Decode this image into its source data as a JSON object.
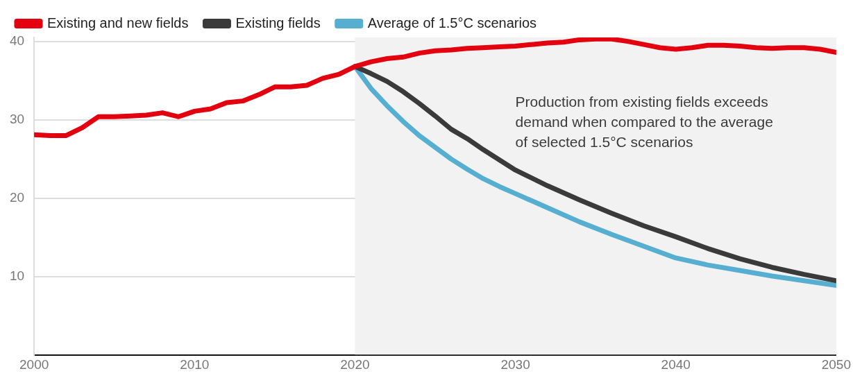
{
  "chart_data": {
    "type": "line",
    "xlim": [
      2000,
      2050
    ],
    "xticks": [
      2000,
      2010,
      2020,
      2030,
      2040,
      2050
    ],
    "ylim": [
      0,
      40.5
    ],
    "yticks": [
      10,
      20,
      30,
      40
    ],
    "grid": "y",
    "legend": "top left",
    "marker": "none",
    "line_style": "solid",
    "annotations": [
      "Production from existing fields exceeds demand when compared to the average of selected 1.5°C scenarios"
    ],
    "bands": [
      {
        "axis": "x",
        "from": 2020,
        "to": 2050,
        "color": "#f2f2f2"
      }
    ],
    "series": [
      {
        "name": "Existing and new fields",
        "color": "#e3000f",
        "x": [
          2000,
          2001,
          2002,
          2003,
          2004,
          2005,
          2006,
          2007,
          2008,
          2009,
          2010,
          2011,
          2012,
          2013,
          2014,
          2015,
          2016,
          2017,
          2018,
          2019,
          2020,
          2021,
          2022,
          2023,
          2024,
          2025,
          2026,
          2027,
          2028,
          2029,
          2030,
          2031,
          2032,
          2033,
          2034,
          2035,
          2036,
          2037,
          2038,
          2039,
          2040,
          2041,
          2042,
          2043,
          2044,
          2045,
          2046,
          2047,
          2048,
          2049,
          2050
        ],
        "values": [
          28.1,
          28.0,
          28.0,
          29.0,
          30.4,
          30.4,
          30.5,
          30.6,
          30.9,
          30.4,
          31.1,
          31.4,
          32.2,
          32.4,
          33.2,
          34.2,
          34.2,
          34.4,
          35.3,
          35.8,
          36.8,
          37.4,
          37.8,
          38.0,
          38.5,
          38.8,
          38.9,
          39.1,
          39.2,
          39.3,
          39.4,
          39.6,
          39.8,
          39.9,
          40.2,
          40.3,
          40.3,
          40.0,
          39.6,
          39.2,
          39.0,
          39.2,
          39.5,
          39.5,
          39.4,
          39.2,
          39.1,
          39.2,
          39.2,
          39.0,
          38.6
        ]
      },
      {
        "name": "Existing fields",
        "color": "#3a3a3a",
        "x": [
          2020,
          2021,
          2022,
          2023,
          2024,
          2025,
          2026,
          2027,
          2028,
          2029,
          2030,
          2032,
          2034,
          2036,
          2038,
          2040,
          2042,
          2044,
          2046,
          2048,
          2050
        ],
        "values": [
          36.8,
          35.9,
          34.9,
          33.6,
          32.1,
          30.5,
          28.8,
          27.6,
          26.2,
          24.9,
          23.6,
          21.6,
          19.8,
          18.1,
          16.5,
          15.1,
          13.6,
          12.3,
          11.2,
          10.3,
          9.5
        ]
      },
      {
        "name": "Average of 1.5°C scenarios",
        "color": "#56aed0",
        "x": [
          2020,
          2021,
          2022,
          2023,
          2024,
          2025,
          2026,
          2027,
          2028,
          2029,
          2030,
          2032,
          2034,
          2036,
          2038,
          2040,
          2042,
          2044,
          2046,
          2048,
          2050
        ],
        "values": [
          36.8,
          34.0,
          31.8,
          29.8,
          28.0,
          26.5,
          25.0,
          23.7,
          22.5,
          21.5,
          20.6,
          18.8,
          17.0,
          15.4,
          13.9,
          12.4,
          11.5,
          10.8,
          10.1,
          9.5,
          8.9
        ]
      }
    ]
  }
}
